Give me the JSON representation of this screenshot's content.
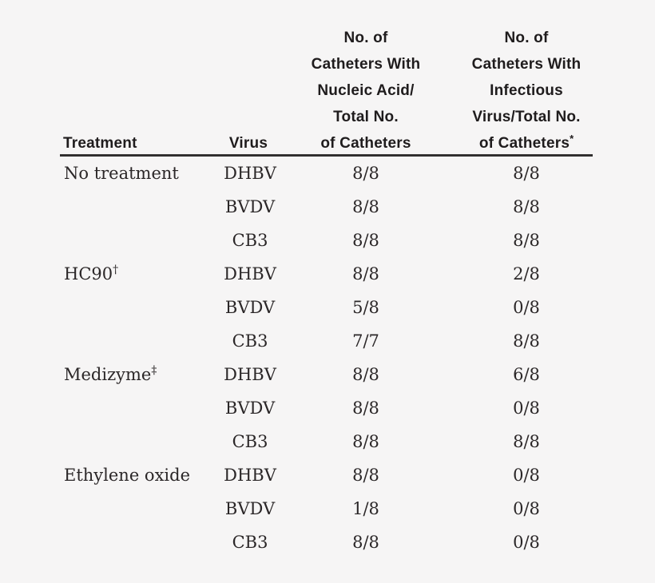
{
  "page": {
    "background_color": "#f6f5f5",
    "body_text_color": "#2b2728",
    "header_text_color": "#1f1c1d",
    "rule_color": "#2f2d2d"
  },
  "table": {
    "columns": [
      {
        "id": "treatment",
        "label": "Treatment"
      },
      {
        "id": "virus",
        "label": "Virus"
      },
      {
        "id": "nucleic_acid",
        "lines": [
          "No. of",
          "Catheters With",
          "Nucleic Acid/",
          "Total No."
        ],
        "last_line": "of Catheters",
        "sup": ""
      },
      {
        "id": "infectious_virus",
        "lines": [
          "No. of",
          "Catheters With",
          "Infectious",
          "Virus/Total No."
        ],
        "last_line": "of Catheters",
        "sup": "*"
      }
    ],
    "rows": [
      {
        "treatment": "No treatment",
        "treatment_sup": "",
        "virus": "DHBV",
        "nucleic": "8/8",
        "infectious": "8/8"
      },
      {
        "treatment": "",
        "treatment_sup": "",
        "virus": "BVDV",
        "nucleic": "8/8",
        "infectious": "8/8"
      },
      {
        "treatment": "",
        "treatment_sup": "",
        "virus": "CB3",
        "nucleic": "8/8",
        "infectious": "8/8"
      },
      {
        "treatment": "HC90",
        "treatment_sup": "†",
        "virus": "DHBV",
        "nucleic": "8/8",
        "infectious": "2/8"
      },
      {
        "treatment": "",
        "treatment_sup": "",
        "virus": "BVDV",
        "nucleic": "5/8",
        "infectious": "0/8"
      },
      {
        "treatment": "",
        "treatment_sup": "",
        "virus": "CB3",
        "nucleic": "7/7",
        "infectious": "8/8"
      },
      {
        "treatment": "Medizyme",
        "treatment_sup": "‡",
        "virus": "DHBV",
        "nucleic": "8/8",
        "infectious": "6/8"
      },
      {
        "treatment": "",
        "treatment_sup": "",
        "virus": "BVDV",
        "nucleic": "8/8",
        "infectious": "0/8"
      },
      {
        "treatment": "",
        "treatment_sup": "",
        "virus": "CB3",
        "nucleic": "8/8",
        "infectious": "8/8"
      },
      {
        "treatment": "Ethylene oxide",
        "treatment_sup": "",
        "virus": "DHBV",
        "nucleic": "8/8",
        "infectious": "0/8"
      },
      {
        "treatment": "",
        "treatment_sup": "",
        "virus": "BVDV",
        "nucleic": "1/8",
        "infectious": "0/8"
      },
      {
        "treatment": "",
        "treatment_sup": "",
        "virus": "CB3",
        "nucleic": "8/8",
        "infectious": "0/8"
      }
    ]
  }
}
